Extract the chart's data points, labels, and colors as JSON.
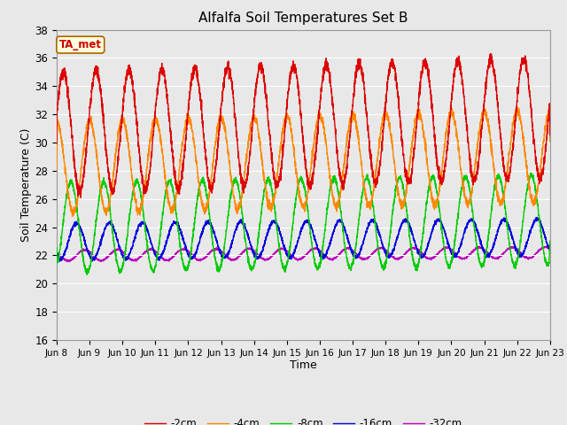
{
  "title": "Alfalfa Soil Temperatures Set B",
  "xlabel": "Time",
  "ylabel": "Soil Temperature (C)",
  "ylim": [
    16,
    38
  ],
  "annotation": "TA_met",
  "annotation_color": "#cc0000",
  "annotation_bg": "#ffffdd",
  "annotation_border": "#aa6600",
  "plot_bg": "#e8e8e8",
  "fig_bg": "#e8e8e8",
  "grid_color": "#ffffff",
  "series_colors": {
    "-2cm": "#dd0000",
    "-4cm": "#ff8800",
    "-8cm": "#00cc00",
    "-16cm": "#0000dd",
    "-32cm": "#bb00bb"
  },
  "x_tick_labels": [
    "Jun 8",
    "Jun 9",
    "Jun 10",
    "Jun 11",
    "Jun 12",
    "Jun 13",
    "Jun 14",
    "Jun 15",
    "Jun 16",
    "Jun 17",
    "Jun 18",
    "Jun 19",
    "Jun 20",
    "Jun 21",
    "Jun 22",
    "Jun 23"
  ],
  "days": 15
}
